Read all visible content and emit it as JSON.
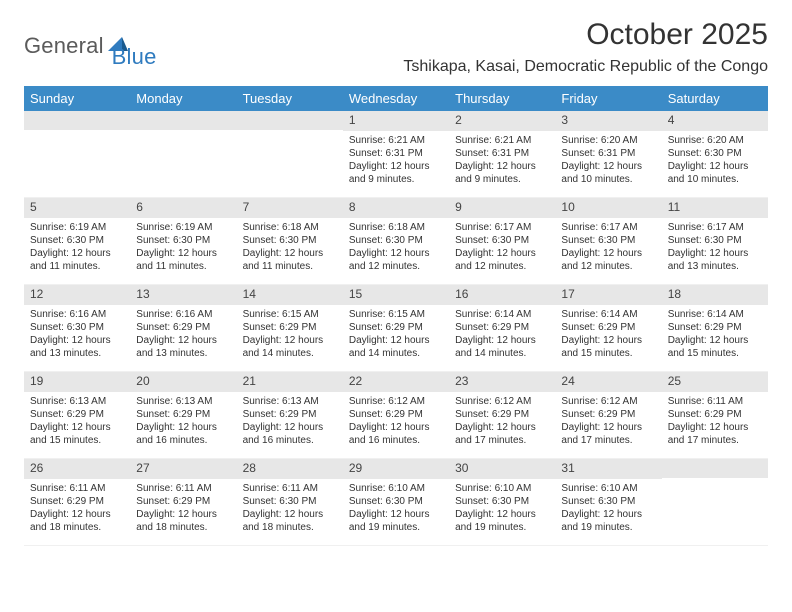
{
  "brand": {
    "part1": "General",
    "part2": "Blue"
  },
  "title": "October 2025",
  "location": "Tshikapa, Kasai, Democratic Republic of the Congo",
  "colors": {
    "header_bg": "#3b8bc7",
    "header_text": "#ffffff",
    "daynum_bg": "#e7e7e7",
    "body_text": "#333333",
    "brand_gray": "#5b5b5b",
    "brand_blue": "#2f7bbf",
    "page_bg": "#ffffff"
  },
  "fonts": {
    "title_size": 30,
    "location_size": 16,
    "weekday_size": 13,
    "daynum_size": 12,
    "body_size": 10
  },
  "weekdays": [
    "Sunday",
    "Monday",
    "Tuesday",
    "Wednesday",
    "Thursday",
    "Friday",
    "Saturday"
  ],
  "weeks": [
    [
      null,
      null,
      null,
      {
        "n": "1",
        "sr": "Sunrise: 6:21 AM",
        "ss": "Sunset: 6:31 PM",
        "d1": "Daylight: 12 hours",
        "d2": "and 9 minutes."
      },
      {
        "n": "2",
        "sr": "Sunrise: 6:21 AM",
        "ss": "Sunset: 6:31 PM",
        "d1": "Daylight: 12 hours",
        "d2": "and 9 minutes."
      },
      {
        "n": "3",
        "sr": "Sunrise: 6:20 AM",
        "ss": "Sunset: 6:31 PM",
        "d1": "Daylight: 12 hours",
        "d2": "and 10 minutes."
      },
      {
        "n": "4",
        "sr": "Sunrise: 6:20 AM",
        "ss": "Sunset: 6:30 PM",
        "d1": "Daylight: 12 hours",
        "d2": "and 10 minutes."
      }
    ],
    [
      {
        "n": "5",
        "sr": "Sunrise: 6:19 AM",
        "ss": "Sunset: 6:30 PM",
        "d1": "Daylight: 12 hours",
        "d2": "and 11 minutes."
      },
      {
        "n": "6",
        "sr": "Sunrise: 6:19 AM",
        "ss": "Sunset: 6:30 PM",
        "d1": "Daylight: 12 hours",
        "d2": "and 11 minutes."
      },
      {
        "n": "7",
        "sr": "Sunrise: 6:18 AM",
        "ss": "Sunset: 6:30 PM",
        "d1": "Daylight: 12 hours",
        "d2": "and 11 minutes."
      },
      {
        "n": "8",
        "sr": "Sunrise: 6:18 AM",
        "ss": "Sunset: 6:30 PM",
        "d1": "Daylight: 12 hours",
        "d2": "and 12 minutes."
      },
      {
        "n": "9",
        "sr": "Sunrise: 6:17 AM",
        "ss": "Sunset: 6:30 PM",
        "d1": "Daylight: 12 hours",
        "d2": "and 12 minutes."
      },
      {
        "n": "10",
        "sr": "Sunrise: 6:17 AM",
        "ss": "Sunset: 6:30 PM",
        "d1": "Daylight: 12 hours",
        "d2": "and 12 minutes."
      },
      {
        "n": "11",
        "sr": "Sunrise: 6:17 AM",
        "ss": "Sunset: 6:30 PM",
        "d1": "Daylight: 12 hours",
        "d2": "and 13 minutes."
      }
    ],
    [
      {
        "n": "12",
        "sr": "Sunrise: 6:16 AM",
        "ss": "Sunset: 6:30 PM",
        "d1": "Daylight: 12 hours",
        "d2": "and 13 minutes."
      },
      {
        "n": "13",
        "sr": "Sunrise: 6:16 AM",
        "ss": "Sunset: 6:29 PM",
        "d1": "Daylight: 12 hours",
        "d2": "and 13 minutes."
      },
      {
        "n": "14",
        "sr": "Sunrise: 6:15 AM",
        "ss": "Sunset: 6:29 PM",
        "d1": "Daylight: 12 hours",
        "d2": "and 14 minutes."
      },
      {
        "n": "15",
        "sr": "Sunrise: 6:15 AM",
        "ss": "Sunset: 6:29 PM",
        "d1": "Daylight: 12 hours",
        "d2": "and 14 minutes."
      },
      {
        "n": "16",
        "sr": "Sunrise: 6:14 AM",
        "ss": "Sunset: 6:29 PM",
        "d1": "Daylight: 12 hours",
        "d2": "and 14 minutes."
      },
      {
        "n": "17",
        "sr": "Sunrise: 6:14 AM",
        "ss": "Sunset: 6:29 PM",
        "d1": "Daylight: 12 hours",
        "d2": "and 15 minutes."
      },
      {
        "n": "18",
        "sr": "Sunrise: 6:14 AM",
        "ss": "Sunset: 6:29 PM",
        "d1": "Daylight: 12 hours",
        "d2": "and 15 minutes."
      }
    ],
    [
      {
        "n": "19",
        "sr": "Sunrise: 6:13 AM",
        "ss": "Sunset: 6:29 PM",
        "d1": "Daylight: 12 hours",
        "d2": "and 15 minutes."
      },
      {
        "n": "20",
        "sr": "Sunrise: 6:13 AM",
        "ss": "Sunset: 6:29 PM",
        "d1": "Daylight: 12 hours",
        "d2": "and 16 minutes."
      },
      {
        "n": "21",
        "sr": "Sunrise: 6:13 AM",
        "ss": "Sunset: 6:29 PM",
        "d1": "Daylight: 12 hours",
        "d2": "and 16 minutes."
      },
      {
        "n": "22",
        "sr": "Sunrise: 6:12 AM",
        "ss": "Sunset: 6:29 PM",
        "d1": "Daylight: 12 hours",
        "d2": "and 16 minutes."
      },
      {
        "n": "23",
        "sr": "Sunrise: 6:12 AM",
        "ss": "Sunset: 6:29 PM",
        "d1": "Daylight: 12 hours",
        "d2": "and 17 minutes."
      },
      {
        "n": "24",
        "sr": "Sunrise: 6:12 AM",
        "ss": "Sunset: 6:29 PM",
        "d1": "Daylight: 12 hours",
        "d2": "and 17 minutes."
      },
      {
        "n": "25",
        "sr": "Sunrise: 6:11 AM",
        "ss": "Sunset: 6:29 PM",
        "d1": "Daylight: 12 hours",
        "d2": "and 17 minutes."
      }
    ],
    [
      {
        "n": "26",
        "sr": "Sunrise: 6:11 AM",
        "ss": "Sunset: 6:29 PM",
        "d1": "Daylight: 12 hours",
        "d2": "and 18 minutes."
      },
      {
        "n": "27",
        "sr": "Sunrise: 6:11 AM",
        "ss": "Sunset: 6:29 PM",
        "d1": "Daylight: 12 hours",
        "d2": "and 18 minutes."
      },
      {
        "n": "28",
        "sr": "Sunrise: 6:11 AM",
        "ss": "Sunset: 6:30 PM",
        "d1": "Daylight: 12 hours",
        "d2": "and 18 minutes."
      },
      {
        "n": "29",
        "sr": "Sunrise: 6:10 AM",
        "ss": "Sunset: 6:30 PM",
        "d1": "Daylight: 12 hours",
        "d2": "and 19 minutes."
      },
      {
        "n": "30",
        "sr": "Sunrise: 6:10 AM",
        "ss": "Sunset: 6:30 PM",
        "d1": "Daylight: 12 hours",
        "d2": "and 19 minutes."
      },
      {
        "n": "31",
        "sr": "Sunrise: 6:10 AM",
        "ss": "Sunset: 6:30 PM",
        "d1": "Daylight: 12 hours",
        "d2": "and 19 minutes."
      },
      null
    ]
  ]
}
